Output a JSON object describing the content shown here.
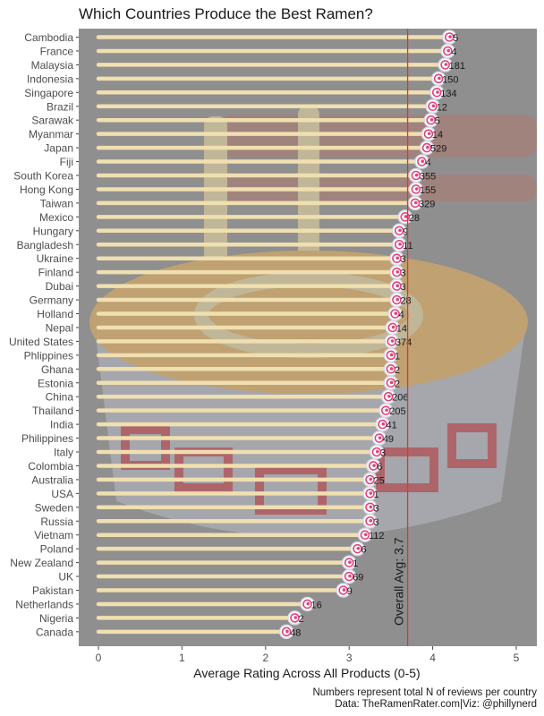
{
  "chart_data": {
    "type": "lollipop",
    "title": "Which Countries Produce the Best Ramen?",
    "xlabel": "Average Rating Across All Products (0-5)",
    "ylabel": "",
    "xlim": [
      -0.25,
      5.3
    ],
    "x_ticks": [
      0,
      1,
      2,
      3,
      4,
      5
    ],
    "grid": false,
    "reference_line": {
      "value": 3.7,
      "label": "Overall Avg: 3.7",
      "color": "#e8332a"
    },
    "caption": [
      "Numbers represent total N of reviews per country",
      "Data: TheRamenRater.com|Viz: @phillynerd"
    ],
    "colors": {
      "panel": "#8f8f8f",
      "stick": "#f0dfb0",
      "ref_line": "#e8332a",
      "swirl_pink": "#e0447a"
    },
    "rows": [
      {
        "country": "Cambodia",
        "avg": 4.2,
        "n": "5"
      },
      {
        "country": "France",
        "avg": 4.18,
        "n": "4"
      },
      {
        "country": "Malaysia",
        "avg": 4.15,
        "n": "181"
      },
      {
        "country": "Indonesia",
        "avg": 4.07,
        "n": "150"
      },
      {
        "country": "Singapore",
        "avg": 4.05,
        "n": "134"
      },
      {
        "country": "Brazil",
        "avg": 4.0,
        "n": "12"
      },
      {
        "country": "Sarawak",
        "avg": 3.98,
        "n": "5"
      },
      {
        "country": "Myanmar",
        "avg": 3.95,
        "n": "14"
      },
      {
        "country": "Japan",
        "avg": 3.93,
        "n": "529"
      },
      {
        "country": "Fiji",
        "avg": 3.87,
        "n": "4"
      },
      {
        "country": "South Korea",
        "avg": 3.8,
        "n": "355"
      },
      {
        "country": "Hong Kong",
        "avg": 3.8,
        "n": "155"
      },
      {
        "country": "Taiwan",
        "avg": 3.79,
        "n": "329"
      },
      {
        "country": "Mexico",
        "avg": 3.67,
        "n": "28"
      },
      {
        "country": "Hungary",
        "avg": 3.6,
        "n": "9"
      },
      {
        "country": "Bangladesh",
        "avg": 3.6,
        "n": "11"
      },
      {
        "country": "Ukraine",
        "avg": 3.57,
        "n": "3"
      },
      {
        "country": "Finland",
        "avg": 3.57,
        "n": "3"
      },
      {
        "country": "Dubai",
        "avg": 3.57,
        "n": "3"
      },
      {
        "country": "Germany",
        "avg": 3.57,
        "n": "28"
      },
      {
        "country": "Holland",
        "avg": 3.55,
        "n": "4"
      },
      {
        "country": "Nepal",
        "avg": 3.52,
        "n": "14"
      },
      {
        "country": "United States",
        "avg": 3.51,
        "n": "374"
      },
      {
        "country": "Phlippines",
        "avg": 3.5,
        "n": "1"
      },
      {
        "country": "Ghana",
        "avg": 3.5,
        "n": "2"
      },
      {
        "country": "Estonia",
        "avg": 3.5,
        "n": "2"
      },
      {
        "country": "China",
        "avg": 3.47,
        "n": "206"
      },
      {
        "country": "Thailand",
        "avg": 3.44,
        "n": "205"
      },
      {
        "country": "India",
        "avg": 3.4,
        "n": "41"
      },
      {
        "country": "Philippines",
        "avg": 3.36,
        "n": "49"
      },
      {
        "country": "Italy",
        "avg": 3.33,
        "n": "3"
      },
      {
        "country": "Colombia",
        "avg": 3.29,
        "n": "6"
      },
      {
        "country": "Australia",
        "avg": 3.25,
        "n": "25"
      },
      {
        "country": "USA",
        "avg": 3.25,
        "n": "1"
      },
      {
        "country": "Sweden",
        "avg": 3.25,
        "n": "3"
      },
      {
        "country": "Russia",
        "avg": 3.25,
        "n": "3"
      },
      {
        "country": "Vietnam",
        "avg": 3.19,
        "n": "112"
      },
      {
        "country": "Poland",
        "avg": 3.1,
        "n": "6"
      },
      {
        "country": "New Zealand",
        "avg": 3.0,
        "n": "1"
      },
      {
        "country": "UK",
        "avg": 3.0,
        "n": "69"
      },
      {
        "country": "Pakistan",
        "avg": 2.93,
        "n": "9"
      },
      {
        "country": "Netherlands",
        "avg": 2.5,
        "n": "16"
      },
      {
        "country": "Nigeria",
        "avg": 2.35,
        "n": "2"
      },
      {
        "country": "Canada",
        "avg": 2.25,
        "n": "48"
      }
    ]
  }
}
